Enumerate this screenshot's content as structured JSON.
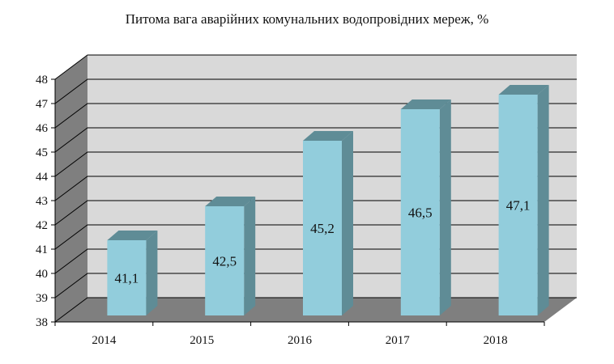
{
  "chart_data": {
    "type": "bar",
    "title": "Питома вага аварійних комунальних водопровідних мереж, %",
    "xlabel": "",
    "ylabel": "",
    "categories": [
      "2014",
      "2015",
      "2016",
      "2017",
      "2018"
    ],
    "values": [
      41.1,
      42.5,
      45.2,
      46.5,
      47.1
    ],
    "data_labels": [
      "41,1",
      "42,5",
      "45,2",
      "46,5",
      "47,1"
    ],
    "ylim": [
      38,
      48
    ],
    "yticks": [
      38,
      39,
      40,
      41,
      42,
      43,
      44,
      45,
      46,
      47,
      48
    ],
    "grid": true,
    "legend": "none",
    "style": "3d-column",
    "colors": {
      "bar_front": "#92cddc",
      "bar_top": "#5f8c96",
      "bar_side": "#5f8c96",
      "wall": "#d9d9d9",
      "floor": "#7f7f7f",
      "side_wall": "#7f7f7f",
      "grid": "#000000"
    }
  }
}
